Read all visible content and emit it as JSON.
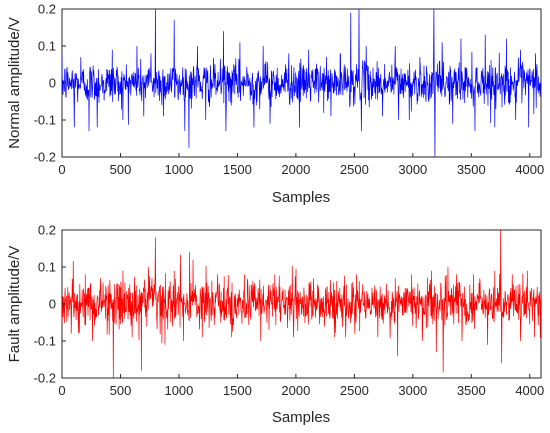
{
  "chart_data": [
    {
      "type": "line",
      "color": "#0000ff",
      "xlabel": "Samples",
      "ylabel": "Normal amplitude/V",
      "xlim": [
        0,
        4096
      ],
      "ylim": [
        -0.2,
        0.2
      ],
      "xticks": [
        "0",
        "500",
        "1000",
        "1500",
        "2000",
        "2500",
        "3000",
        "3500",
        "4000"
      ],
      "yticks": [
        "0.2",
        "0.1",
        "0",
        "-0.1",
        "-0.2"
      ],
      "grid": false,
      "spikes": [
        {
          "x": 105,
          "y": -0.12
        },
        {
          "x": 160,
          "y": 0.07
        },
        {
          "x": 230,
          "y": -0.13
        },
        {
          "x": 300,
          "y": -0.12
        },
        {
          "x": 430,
          "y": 0.09
        },
        {
          "x": 520,
          "y": -0.1
        },
        {
          "x": 640,
          "y": 0.1
        },
        {
          "x": 700,
          "y": -0.09
        },
        {
          "x": 760,
          "y": 0.08
        },
        {
          "x": 800,
          "y": 0.2
        },
        {
          "x": 870,
          "y": -0.09
        },
        {
          "x": 960,
          "y": 0.17
        },
        {
          "x": 1050,
          "y": -0.13
        },
        {
          "x": 1085,
          "y": -0.175
        },
        {
          "x": 1160,
          "y": 0.1
        },
        {
          "x": 1230,
          "y": -0.1
        },
        {
          "x": 1380,
          "y": 0.14
        },
        {
          "x": 1400,
          "y": -0.13
        },
        {
          "x": 1520,
          "y": 0.11
        },
        {
          "x": 1640,
          "y": -0.12
        },
        {
          "x": 1720,
          "y": 0.1
        },
        {
          "x": 1780,
          "y": -0.11
        },
        {
          "x": 1940,
          "y": 0.08
        },
        {
          "x": 2030,
          "y": -0.12
        },
        {
          "x": 2110,
          "y": 0.09
        },
        {
          "x": 2300,
          "y": -0.09
        },
        {
          "x": 2380,
          "y": 0.08
        },
        {
          "x": 2470,
          "y": 0.19
        },
        {
          "x": 2540,
          "y": 0.2
        },
        {
          "x": 2560,
          "y": -0.13
        },
        {
          "x": 2600,
          "y": 0.1
        },
        {
          "x": 2740,
          "y": -0.09
        },
        {
          "x": 2850,
          "y": 0.1
        },
        {
          "x": 2880,
          "y": -0.1
        },
        {
          "x": 2970,
          "y": -0.1
        },
        {
          "x": 3060,
          "y": 0.07
        },
        {
          "x": 3180,
          "y": 0.2
        },
        {
          "x": 3190,
          "y": -0.2
        },
        {
          "x": 3250,
          "y": 0.11
        },
        {
          "x": 3340,
          "y": -0.11
        },
        {
          "x": 3410,
          "y": 0.12
        },
        {
          "x": 3530,
          "y": -0.13
        },
        {
          "x": 3620,
          "y": 0.13
        },
        {
          "x": 3700,
          "y": -0.12
        },
        {
          "x": 3800,
          "y": 0.12
        },
        {
          "x": 3880,
          "y": -0.1
        },
        {
          "x": 3920,
          "y": 0.09
        },
        {
          "x": 3990,
          "y": -0.12
        },
        {
          "x": 4050,
          "y": 0.08
        }
      ],
      "noise_std": 0.028
    },
    {
      "type": "line",
      "color": "#ff0000",
      "xlabel": "Samples",
      "ylabel": "Fault amplitude/V",
      "xlim": [
        0,
        4096
      ],
      "ylim": [
        -0.2,
        0.2
      ],
      "xticks": [
        "0",
        "500",
        "1000",
        "1500",
        "2000",
        "2500",
        "3000",
        "3500",
        "4000"
      ],
      "yticks": [
        "0.2",
        "0.1",
        "0",
        "-0.1",
        "-0.2"
      ],
      "grid": false,
      "spikes": [
        {
          "x": 80,
          "y": -0.08
        },
        {
          "x": 200,
          "y": 0.08
        },
        {
          "x": 260,
          "y": -0.1
        },
        {
          "x": 330,
          "y": 0.07
        },
        {
          "x": 440,
          "y": -0.2
        },
        {
          "x": 520,
          "y": 0.09
        },
        {
          "x": 600,
          "y": -0.09
        },
        {
          "x": 680,
          "y": -0.18
        },
        {
          "x": 740,
          "y": 0.1
        },
        {
          "x": 800,
          "y": 0.18
        },
        {
          "x": 880,
          "y": -0.11
        },
        {
          "x": 960,
          "y": 0.09
        },
        {
          "x": 1040,
          "y": -0.1
        },
        {
          "x": 1090,
          "y": 0.14
        },
        {
          "x": 1120,
          "y": 0.12
        },
        {
          "x": 1200,
          "y": -0.09
        },
        {
          "x": 1330,
          "y": 0.08
        },
        {
          "x": 1450,
          "y": -0.09
        },
        {
          "x": 1560,
          "y": 0.08
        },
        {
          "x": 1700,
          "y": -0.1
        },
        {
          "x": 1820,
          "y": 0.08
        },
        {
          "x": 1980,
          "y": -0.09
        },
        {
          "x": 2150,
          "y": 0.07
        },
        {
          "x": 2330,
          "y": -0.09
        },
        {
          "x": 2520,
          "y": 0.08
        },
        {
          "x": 2700,
          "y": -0.09
        },
        {
          "x": 2850,
          "y": 0.07
        },
        {
          "x": 2870,
          "y": -0.14
        },
        {
          "x": 2990,
          "y": 0.08
        },
        {
          "x": 3080,
          "y": -0.1
        },
        {
          "x": 3160,
          "y": 0.09
        },
        {
          "x": 3200,
          "y": -0.13
        },
        {
          "x": 3260,
          "y": -0.185
        },
        {
          "x": 3300,
          "y": 0.1
        },
        {
          "x": 3420,
          "y": -0.1
        },
        {
          "x": 3520,
          "y": 0.08
        },
        {
          "x": 3640,
          "y": -0.11
        },
        {
          "x": 3700,
          "y": 0.09
        },
        {
          "x": 3750,
          "y": 0.2
        },
        {
          "x": 3760,
          "y": -0.16
        },
        {
          "x": 3850,
          "y": 0.08
        },
        {
          "x": 3920,
          "y": -0.1
        },
        {
          "x": 3980,
          "y": 0.09
        },
        {
          "x": 4040,
          "y": -0.09
        }
      ],
      "noise_std": 0.033
    }
  ]
}
